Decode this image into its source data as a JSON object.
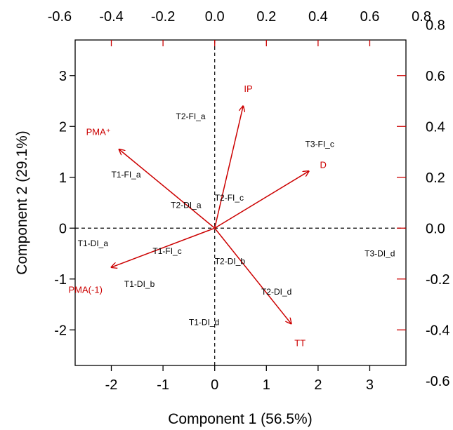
{
  "chart_data": {
    "type": "scatter",
    "xlabel": "Component 1 (56.5%)",
    "ylabel": "Component 2 (29.1%)",
    "xlim": [
      -2.7,
      3.7
    ],
    "ylim": [
      -2.7,
      3.7
    ],
    "x_ticks": [
      "-2",
      "-1",
      "0",
      "1",
      "2",
      "3"
    ],
    "y_ticks": [
      "-2",
      "-1",
      "0",
      "1",
      "2",
      "3"
    ],
    "xlim_top": [
      -0.54,
      0.74
    ],
    "ylim_right": [
      -0.54,
      0.74
    ],
    "top_ticks": [
      "-0.6",
      "-0.4",
      "-0.2",
      "0.0",
      "0.2",
      "0.4",
      "0.6",
      "0.8"
    ],
    "right_ticks": [
      "0.8",
      "0.6",
      "0.4",
      "0.2",
      "0.0",
      "-0.2",
      "-0.4",
      "-0.6"
    ],
    "grid": false,
    "reference_lines": "dashed lines at x=0 and y=0",
    "observations": [
      {
        "label": "T1-DI_a",
        "x": -2.65,
        "y": -0.3
      },
      {
        "label": "T1-DI_b",
        "x": -1.75,
        "y": -1.1
      },
      {
        "label": "T1-DI_d",
        "x": -0.5,
        "y": -1.85
      },
      {
        "label": "T1-FI_a",
        "x": -2.0,
        "y": 1.05
      },
      {
        "label": "T1-FI_c",
        "x": -1.2,
        "y": -0.45
      },
      {
        "label": "T2-DI_a",
        "x": -0.85,
        "y": 0.45
      },
      {
        "label": "T2-DI_b",
        "x": 0.0,
        "y": -0.65
      },
      {
        "label": "T2-DI_d",
        "x": 0.9,
        "y": -1.25
      },
      {
        "label": "T2-FI_a",
        "x": -0.75,
        "y": 2.2
      },
      {
        "label": "T2-FI_c",
        "x": 0.0,
        "y": 0.6
      },
      {
        "label": "T3-FI_c",
        "x": 1.75,
        "y": 1.65
      },
      {
        "label": "T3-DI_d",
        "x": 2.9,
        "y": -0.5
      }
    ],
    "loadings": [
      {
        "label": "IP",
        "x": 0.11,
        "y": 0.48,
        "label_x": 0.13,
        "label_y": 0.55
      },
      {
        "label": "D",
        "x": 0.364,
        "y": 0.224,
        "label_x": 0.42,
        "label_y": 0.25
      },
      {
        "label": "TT",
        "x": 0.296,
        "y": -0.376,
        "label_x": 0.33,
        "label_y": -0.45
      },
      {
        "label": "PMA⁺",
        "x": -0.37,
        "y": 0.31,
        "label_x": -0.45,
        "label_y": 0.38
      },
      {
        "label": "PMA(-1)",
        "x": -0.4,
        "y": -0.154,
        "label_x": -0.5,
        "label_y": -0.24
      }
    ],
    "colors": {
      "observations": "#000000",
      "loadings": "#cc0000",
      "axes": "#000000",
      "secondary_axes": "#cc0000"
    }
  }
}
